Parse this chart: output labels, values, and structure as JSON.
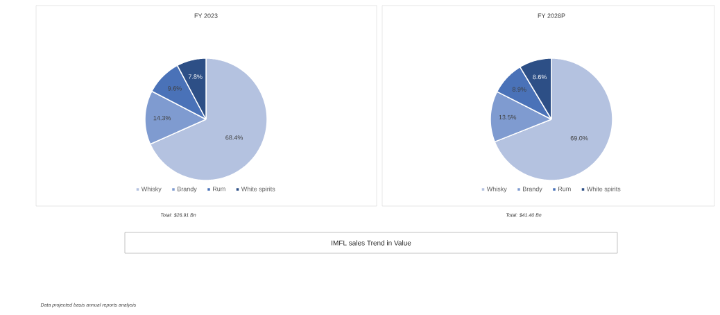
{
  "chart_data": [
    {
      "type": "pie",
      "title": "FY 2023",
      "categories": [
        "Whisky",
        "Brandy",
        "Rum",
        "White spirits"
      ],
      "values": [
        68.4,
        14.3,
        9.6,
        7.8
      ],
      "value_labels": [
        "68.4%",
        "14.3%",
        "9.6%",
        "7.8%"
      ],
      "colors": [
        "#b4c2e0",
        "#7f9bd0",
        "#4a72b8",
        "#2d4f86"
      ],
      "legend": "bottom",
      "annotations": [
        "Total: $26.91 Bn"
      ]
    },
    {
      "type": "pie",
      "title": "FY 2028P",
      "categories": [
        "Whisky",
        "Brandy",
        "Rum",
        "White spirits"
      ],
      "values": [
        69.0,
        13.5,
        8.9,
        8.6
      ],
      "value_labels": [
        "69.0%",
        "13.5%",
        "8.9%",
        "8.6%"
      ],
      "colors": [
        "#b4c2e0",
        "#7f9bd0",
        "#4a72b8",
        "#2d4f86"
      ],
      "legend": "bottom",
      "annotations": [
        "Total: $41.40 Bn"
      ]
    },
    {
      "type": "other",
      "title": "IMFL sales Trend in Value",
      "annotations": [
        "Data projected basis annual reports analysis"
      ]
    }
  ]
}
